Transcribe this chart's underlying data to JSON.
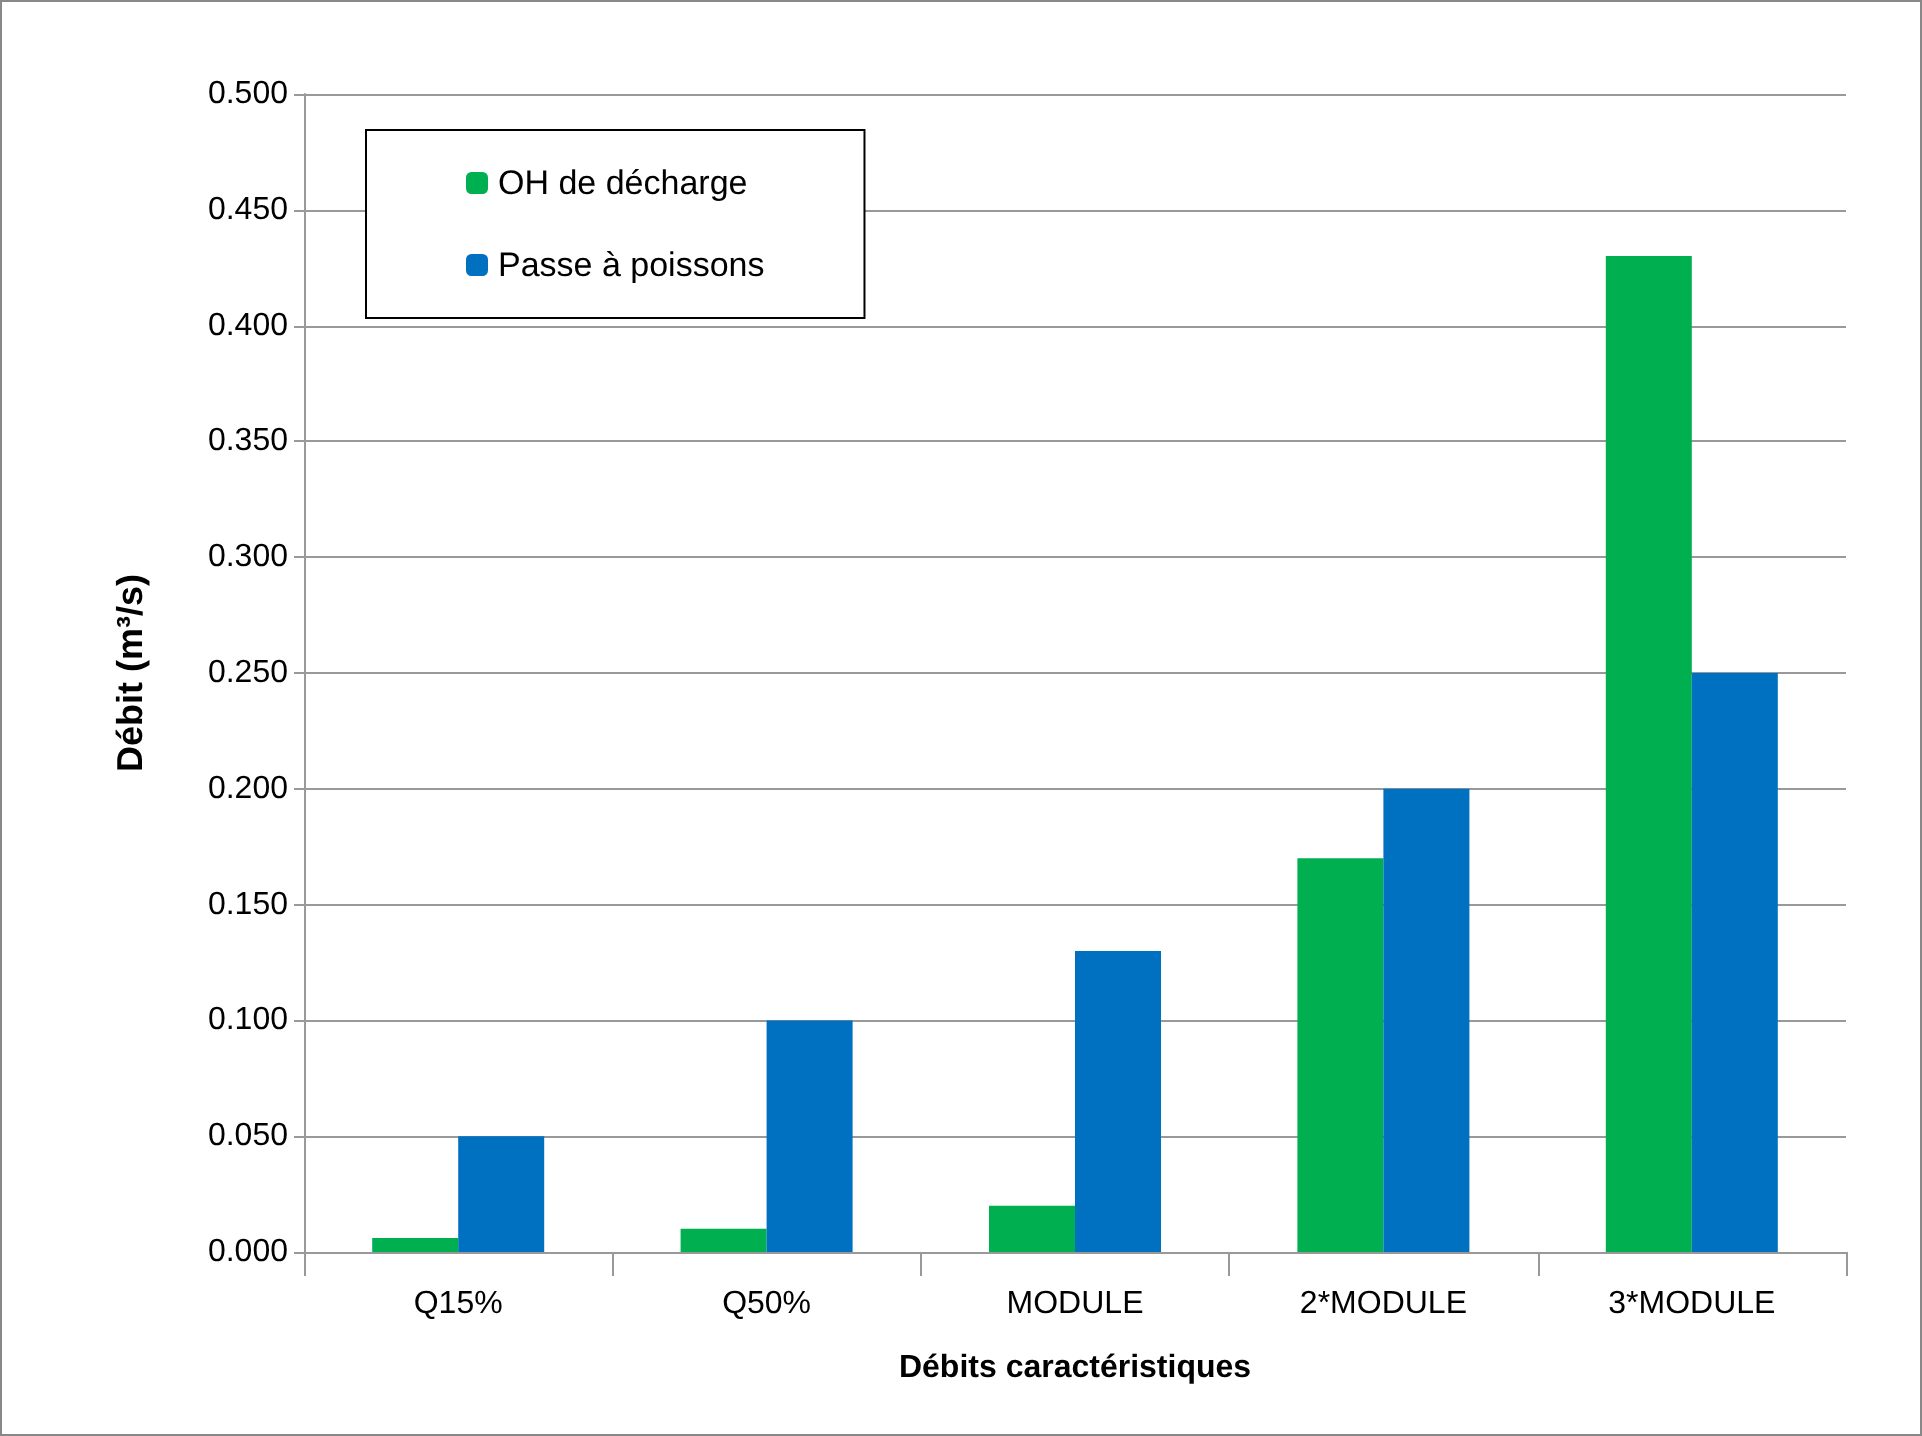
{
  "chart_data": {
    "type": "bar",
    "xlabel": "Débits caractéristiques",
    "ylabel": "Débit (m³/s)",
    "categories": [
      "Q15%",
      "Q50%",
      "MODULE",
      "2*MODULE",
      "3*MODULE"
    ],
    "series": [
      {
        "name": "OH de décharge",
        "color": "#00b050",
        "values": [
          0.006,
          0.01,
          0.02,
          0.17,
          0.43
        ]
      },
      {
        "name": "Passe à poissons",
        "color": "#0070c0",
        "values": [
          0.05,
          0.1,
          0.13,
          0.2,
          0.25
        ]
      }
    ],
    "ylim": [
      0,
      0.5
    ],
    "yticks": [
      {
        "value": 0,
        "label": "0.000"
      },
      {
        "value": 0.05,
        "label": "0.050"
      },
      {
        "value": 0.1,
        "label": "0.100"
      },
      {
        "value": 0.15,
        "label": "0.150"
      },
      {
        "value": 0.2,
        "label": "0.200"
      },
      {
        "value": 0.25,
        "label": "0.250"
      },
      {
        "value": 0.3,
        "label": "0.300"
      },
      {
        "value": 0.35,
        "label": "0.350"
      },
      {
        "value": 0.4,
        "label": "0.400"
      },
      {
        "value": 0.45,
        "label": "0.450"
      },
      {
        "value": 0.5,
        "label": "0.500"
      }
    ],
    "grid": "y",
    "legend": "top left"
  }
}
